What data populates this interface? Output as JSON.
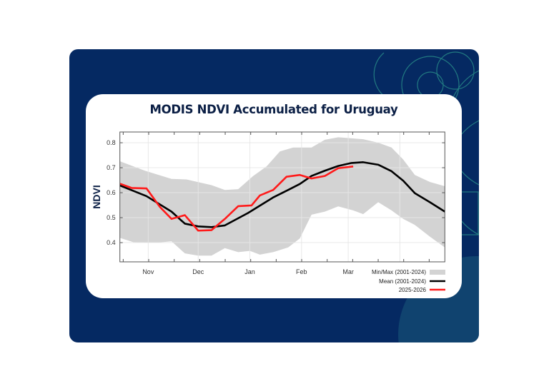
{
  "title": "MODIS NDVI Accumulated for Uruguay",
  "colors": {
    "navy": "#052962",
    "band": "#d3d3d3",
    "mean": "#000000",
    "current": "#ff1a1a",
    "deco": "#2a8f8a"
  },
  "chart_data": {
    "type": "line",
    "title": "MODIS NDVI Accumulated for Uruguay",
    "xlabel": "",
    "ylabel": "NDVI",
    "x_unit": "days since Oct 15",
    "xlim": [
      0,
      195
    ],
    "ylim": [
      0.323,
      0.843
    ],
    "yticks": [
      0.4,
      0.5,
      0.6,
      0.7,
      0.8
    ],
    "ytick_labels": [
      "0.4",
      "0.5",
      "0.6",
      "0.7",
      "0.8"
    ],
    "xticks": [
      {
        "day": 17,
        "label": "Nov"
      },
      {
        "day": 47,
        "label": "Dec"
      },
      {
        "day": 78,
        "label": "Jan"
      },
      {
        "day": 109,
        "label": "Feb"
      },
      {
        "day": 137,
        "label": "Mar"
      },
      {
        "day": 168,
        "label": ""
      }
    ],
    "grid": true,
    "legend_position": "bottom-right",
    "legend": [
      "Min/Max (2001-2024)",
      "Mean (2001-2024)",
      "2025-2026"
    ],
    "band": {
      "name": "Min/Max (2001-2024)",
      "max": [
        [
          0,
          0.726
        ],
        [
          15,
          0.688
        ],
        [
          31,
          0.655
        ],
        [
          40,
          0.653
        ],
        [
          55,
          0.63
        ],
        [
          63,
          0.611
        ],
        [
          71,
          0.614
        ],
        [
          80,
          0.667
        ],
        [
          88,
          0.705
        ],
        [
          96,
          0.765
        ],
        [
          104,
          0.781
        ],
        [
          115,
          0.781
        ],
        [
          123,
          0.812
        ],
        [
          131,
          0.822
        ],
        [
          146,
          0.814
        ],
        [
          155,
          0.8
        ],
        [
          163,
          0.781
        ],
        [
          170,
          0.733
        ],
        [
          177,
          0.671
        ],
        [
          186,
          0.643
        ],
        [
          195,
          0.626
        ]
      ],
      "min": [
        [
          0,
          0.419
        ],
        [
          8,
          0.402
        ],
        [
          22,
          0.4
        ],
        [
          31,
          0.405
        ],
        [
          39,
          0.357
        ],
        [
          47,
          0.348
        ],
        [
          55,
          0.348
        ],
        [
          63,
          0.378
        ],
        [
          71,
          0.362
        ],
        [
          78,
          0.367
        ],
        [
          84,
          0.352
        ],
        [
          92,
          0.362
        ],
        [
          101,
          0.381
        ],
        [
          108,
          0.417
        ],
        [
          115,
          0.512
        ],
        [
          123,
          0.524
        ],
        [
          131,
          0.545
        ],
        [
          140,
          0.529
        ],
        [
          146,
          0.514
        ],
        [
          155,
          0.562
        ],
        [
          163,
          0.529
        ],
        [
          170,
          0.495
        ],
        [
          177,
          0.471
        ],
        [
          186,
          0.424
        ],
        [
          195,
          0.381
        ]
      ]
    },
    "series": [
      {
        "name": "Mean (2001-2024)",
        "points": [
          [
            0,
            0.629
          ],
          [
            16,
            0.586
          ],
          [
            31,
            0.524
          ],
          [
            39,
            0.476
          ],
          [
            47,
            0.465
          ],
          [
            55,
            0.462
          ],
          [
            63,
            0.469
          ],
          [
            77,
            0.519
          ],
          [
            84,
            0.548
          ],
          [
            92,
            0.581
          ],
          [
            101,
            0.611
          ],
          [
            108,
            0.635
          ],
          [
            115,
            0.667
          ],
          [
            123,
            0.688
          ],
          [
            131,
            0.707
          ],
          [
            139,
            0.719
          ],
          [
            146,
            0.722
          ],
          [
            155,
            0.712
          ],
          [
            163,
            0.686
          ],
          [
            170,
            0.648
          ],
          [
            177,
            0.598
          ],
          [
            186,
            0.562
          ],
          [
            195,
            0.524
          ]
        ]
      },
      {
        "name": "2025-2026",
        "points": [
          [
            0,
            0.636
          ],
          [
            7,
            0.619
          ],
          [
            16,
            0.617
          ],
          [
            24,
            0.543
          ],
          [
            31,
            0.495
          ],
          [
            39,
            0.51
          ],
          [
            47,
            0.448
          ],
          [
            55,
            0.45
          ],
          [
            63,
            0.495
          ],
          [
            71,
            0.546
          ],
          [
            79,
            0.549
          ],
          [
            84,
            0.589
          ],
          [
            92,
            0.611
          ],
          [
            100,
            0.664
          ],
          [
            108,
            0.671
          ],
          [
            115,
            0.657
          ],
          [
            123,
            0.667
          ],
          [
            131,
            0.698
          ],
          [
            140,
            0.705
          ]
        ]
      }
    ]
  }
}
